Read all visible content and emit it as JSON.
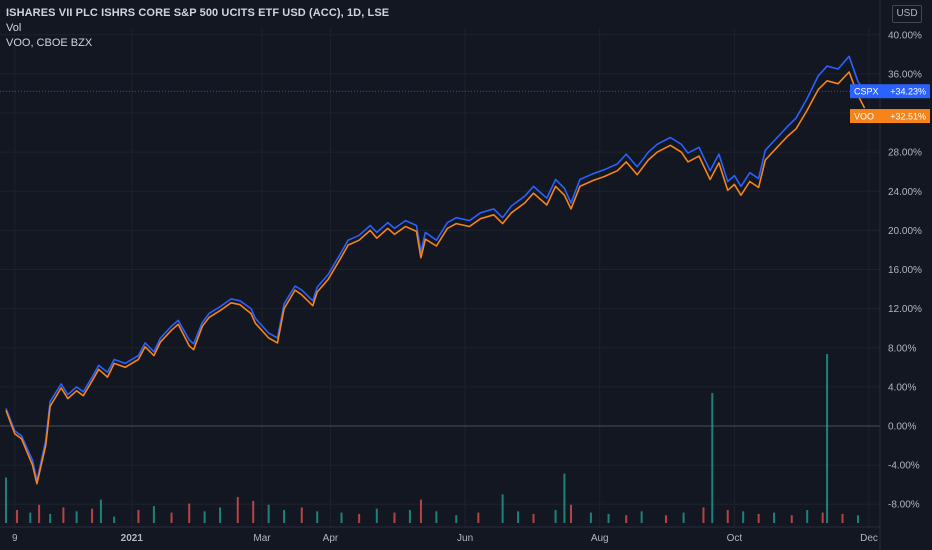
{
  "header": {
    "symbol_title": "ISHARES VII PLC ISHRS CORE S&P 500 UCITS ETF USD (ACC), 1D, LSE",
    "volume_label": "Vol",
    "compare_label": "VOO, CBOE BZX"
  },
  "currency": "USD",
  "colors": {
    "background": "#131722",
    "cspx": "#2962ff",
    "voo": "#f7841a",
    "vol_up": "#26a69a",
    "vol_down": "#ef5350",
    "grid": "#1e222d",
    "zero_line": "#787b86"
  },
  "chart_data": {
    "type": "line",
    "title": "ISHARES VII PLC ISHRS CORE S&P 500 UCITS ETF USD (ACC), 1D, LSE",
    "xlabel": "",
    "ylabel": "",
    "y_axis_unit": "%",
    "ylim": [
      -10,
      41
    ],
    "y_ticks": [
      "40.00%",
      "36.00%",
      "32.00%",
      "28.00%",
      "24.00%",
      "20.00%",
      "16.00%",
      "12.00%",
      "8.00%",
      "4.00%",
      "0.00%",
      "-4.00%",
      "-8.00%"
    ],
    "x_tick_labels": [
      "9",
      "2021",
      "Mar",
      "Apr",
      "Jun",
      "Aug",
      "Oct",
      "Dec"
    ],
    "grid": true,
    "series": [
      {
        "name": "CSPX",
        "last_label": "+34.23%",
        "last_value": 34.23,
        "points": [
          [
            "2020-11-05",
            1.8
          ],
          [
            "2020-11-09",
            -0.5
          ],
          [
            "2020-11-12",
            -1.0
          ],
          [
            "2020-11-17",
            -3.5
          ],
          [
            "2020-11-19",
            -5.6
          ],
          [
            "2020-11-23",
            -1.5
          ],
          [
            "2020-11-25",
            2.5
          ],
          [
            "2020-11-30",
            4.3
          ],
          [
            "2020-12-03",
            3.2
          ],
          [
            "2020-12-07",
            4.0
          ],
          [
            "2020-12-10",
            3.5
          ],
          [
            "2020-12-14",
            5.0
          ],
          [
            "2020-12-17",
            6.2
          ],
          [
            "2020-12-21",
            5.5
          ],
          [
            "2020-12-24",
            6.8
          ],
          [
            "2020-12-29",
            6.4
          ],
          [
            "2021-01-04",
            7.2
          ],
          [
            "2021-01-07",
            8.5
          ],
          [
            "2021-01-11",
            7.6
          ],
          [
            "2021-01-14",
            9.0
          ],
          [
            "2021-01-19",
            10.2
          ],
          [
            "2021-01-22",
            10.8
          ],
          [
            "2021-01-27",
            8.8
          ],
          [
            "2021-01-29",
            8.4
          ],
          [
            "2021-02-02",
            10.6
          ],
          [
            "2021-02-05",
            11.5
          ],
          [
            "2021-02-10",
            12.2
          ],
          [
            "2021-02-15",
            13.0
          ],
          [
            "2021-02-19",
            12.8
          ],
          [
            "2021-02-24",
            12.0
          ],
          [
            "2021-02-26",
            11.0
          ],
          [
            "2021-03-04",
            9.5
          ],
          [
            "2021-03-08",
            9.0
          ],
          [
            "2021-03-11",
            12.5
          ],
          [
            "2021-03-16",
            14.3
          ],
          [
            "2021-03-19",
            13.9
          ],
          [
            "2021-03-24",
            12.8
          ],
          [
            "2021-03-26",
            14.2
          ],
          [
            "2021-03-31",
            15.5
          ],
          [
            "2021-04-06",
            17.8
          ],
          [
            "2021-04-09",
            19.0
          ],
          [
            "2021-04-14",
            19.5
          ],
          [
            "2021-04-19",
            20.5
          ],
          [
            "2021-04-22",
            19.8
          ],
          [
            "2021-04-27",
            20.8
          ],
          [
            "2021-04-30",
            20.2
          ],
          [
            "2021-05-05",
            21.0
          ],
          [
            "2021-05-10",
            20.5
          ],
          [
            "2021-05-12",
            17.8
          ],
          [
            "2021-05-14",
            19.8
          ],
          [
            "2021-05-19",
            19.0
          ],
          [
            "2021-05-24",
            20.8
          ],
          [
            "2021-05-28",
            21.3
          ],
          [
            "2021-06-03",
            21.0
          ],
          [
            "2021-06-08",
            21.8
          ],
          [
            "2021-06-14",
            22.2
          ],
          [
            "2021-06-18",
            21.3
          ],
          [
            "2021-06-22",
            22.5
          ],
          [
            "2021-06-28",
            23.5
          ],
          [
            "2021-07-02",
            24.5
          ],
          [
            "2021-07-08",
            23.3
          ],
          [
            "2021-07-12",
            25.2
          ],
          [
            "2021-07-16",
            24.3
          ],
          [
            "2021-07-19",
            22.8
          ],
          [
            "2021-07-23",
            25.2
          ],
          [
            "2021-07-29",
            25.8
          ],
          [
            "2021-08-03",
            26.2
          ],
          [
            "2021-08-09",
            26.8
          ],
          [
            "2021-08-13",
            27.8
          ],
          [
            "2021-08-18",
            26.5
          ],
          [
            "2021-08-23",
            28.0
          ],
          [
            "2021-08-27",
            28.8
          ],
          [
            "2021-09-02",
            29.5
          ],
          [
            "2021-09-07",
            28.8
          ],
          [
            "2021-09-10",
            27.9
          ],
          [
            "2021-09-15",
            28.5
          ],
          [
            "2021-09-20",
            26.1
          ],
          [
            "2021-09-24",
            27.8
          ],
          [
            "2021-09-28",
            25.0
          ],
          [
            "2021-10-01",
            25.6
          ],
          [
            "2021-10-04",
            24.5
          ],
          [
            "2021-10-08",
            25.9
          ],
          [
            "2021-10-12",
            25.3
          ],
          [
            "2021-10-15",
            28.2
          ],
          [
            "2021-10-20",
            29.4
          ],
          [
            "2021-10-25",
            30.6
          ],
          [
            "2021-10-29",
            31.5
          ],
          [
            "2021-11-03",
            33.5
          ],
          [
            "2021-11-08",
            35.8
          ],
          [
            "2021-11-12",
            36.8
          ],
          [
            "2021-11-17",
            36.5
          ],
          [
            "2021-11-22",
            37.8
          ],
          [
            "2021-11-26",
            35.2
          ],
          [
            "2021-11-29",
            34.23
          ]
        ]
      },
      {
        "name": "VOO",
        "last_label": "+32.51%",
        "last_value": 32.51,
        "points": [
          [
            "2020-11-05",
            1.6
          ],
          [
            "2020-11-09",
            -0.8
          ],
          [
            "2020-11-12",
            -1.3
          ],
          [
            "2020-11-17",
            -4.0
          ],
          [
            "2020-11-19",
            -5.9
          ],
          [
            "2020-11-23",
            -2.0
          ],
          [
            "2020-11-25",
            2.0
          ],
          [
            "2020-11-30",
            3.9
          ],
          [
            "2020-12-03",
            2.8
          ],
          [
            "2020-12-07",
            3.6
          ],
          [
            "2020-12-10",
            3.1
          ],
          [
            "2020-12-14",
            4.6
          ],
          [
            "2020-12-17",
            5.8
          ],
          [
            "2020-12-21",
            5.0
          ],
          [
            "2020-12-24",
            6.4
          ],
          [
            "2020-12-29",
            6.0
          ],
          [
            "2021-01-04",
            6.8
          ],
          [
            "2021-01-07",
            8.1
          ],
          [
            "2021-01-11",
            7.2
          ],
          [
            "2021-01-14",
            8.6
          ],
          [
            "2021-01-19",
            9.8
          ],
          [
            "2021-01-22",
            10.4
          ],
          [
            "2021-01-27",
            8.2
          ],
          [
            "2021-01-29",
            7.8
          ],
          [
            "2021-02-02",
            10.2
          ],
          [
            "2021-02-05",
            11.1
          ],
          [
            "2021-02-10",
            11.8
          ],
          [
            "2021-02-15",
            12.6
          ],
          [
            "2021-02-19",
            12.4
          ],
          [
            "2021-02-24",
            11.5
          ],
          [
            "2021-02-26",
            10.5
          ],
          [
            "2021-03-04",
            9.0
          ],
          [
            "2021-03-08",
            8.5
          ],
          [
            "2021-03-11",
            12.0
          ],
          [
            "2021-03-16",
            13.9
          ],
          [
            "2021-03-19",
            13.4
          ],
          [
            "2021-03-24",
            12.3
          ],
          [
            "2021-03-26",
            13.7
          ],
          [
            "2021-03-31",
            15.0
          ],
          [
            "2021-04-06",
            17.3
          ],
          [
            "2021-04-09",
            18.5
          ],
          [
            "2021-04-14",
            19.0
          ],
          [
            "2021-04-19",
            20.0
          ],
          [
            "2021-04-22",
            19.2
          ],
          [
            "2021-04-27",
            20.2
          ],
          [
            "2021-04-30",
            19.6
          ],
          [
            "2021-05-05",
            20.4
          ],
          [
            "2021-05-10",
            19.9
          ],
          [
            "2021-05-12",
            17.2
          ],
          [
            "2021-05-14",
            19.1
          ],
          [
            "2021-05-19",
            18.4
          ],
          [
            "2021-05-24",
            20.2
          ],
          [
            "2021-05-28",
            20.7
          ],
          [
            "2021-06-03",
            20.4
          ],
          [
            "2021-06-08",
            21.2
          ],
          [
            "2021-06-14",
            21.6
          ],
          [
            "2021-06-18",
            20.7
          ],
          [
            "2021-06-22",
            21.8
          ],
          [
            "2021-06-28",
            22.8
          ],
          [
            "2021-07-02",
            23.8
          ],
          [
            "2021-07-08",
            22.6
          ],
          [
            "2021-07-12",
            24.5
          ],
          [
            "2021-07-16",
            23.6
          ],
          [
            "2021-07-19",
            22.2
          ],
          [
            "2021-07-23",
            24.5
          ],
          [
            "2021-07-29",
            25.1
          ],
          [
            "2021-08-03",
            25.5
          ],
          [
            "2021-08-09",
            26.1
          ],
          [
            "2021-08-13",
            27.0
          ],
          [
            "2021-08-18",
            25.7
          ],
          [
            "2021-08-23",
            27.2
          ],
          [
            "2021-08-27",
            28.0
          ],
          [
            "2021-09-02",
            28.7
          ],
          [
            "2021-09-07",
            28.0
          ],
          [
            "2021-09-10",
            27.0
          ],
          [
            "2021-09-15",
            27.6
          ],
          [
            "2021-09-20",
            25.2
          ],
          [
            "2021-09-24",
            26.9
          ],
          [
            "2021-09-28",
            24.1
          ],
          [
            "2021-10-01",
            24.7
          ],
          [
            "2021-10-04",
            23.6
          ],
          [
            "2021-10-08",
            25.0
          ],
          [
            "2021-10-12",
            24.4
          ],
          [
            "2021-10-15",
            27.2
          ],
          [
            "2021-10-20",
            28.4
          ],
          [
            "2021-10-25",
            29.6
          ],
          [
            "2021-10-29",
            30.4
          ],
          [
            "2021-11-03",
            32.3
          ],
          [
            "2021-11-08",
            34.4
          ],
          [
            "2021-11-12",
            35.3
          ],
          [
            "2021-11-17",
            35.0
          ],
          [
            "2021-11-22",
            36.2
          ],
          [
            "2021-11-26",
            33.8
          ],
          [
            "2021-11-29",
            32.51
          ]
        ]
      }
    ],
    "volume": {
      "name": "Vol",
      "bars": [
        [
          "2020-11-05",
          0.35,
          "up"
        ],
        [
          "2020-11-10",
          0.1,
          "down"
        ],
        [
          "2020-11-16",
          0.08,
          "up"
        ],
        [
          "2020-11-20",
          0.14,
          "down"
        ],
        [
          "2020-11-25",
          0.07,
          "up"
        ],
        [
          "2020-12-01",
          0.12,
          "down"
        ],
        [
          "2020-12-07",
          0.09,
          "up"
        ],
        [
          "2020-12-14",
          0.11,
          "down"
        ],
        [
          "2020-12-18",
          0.18,
          "up"
        ],
        [
          "2020-12-24",
          0.05,
          "up"
        ],
        [
          "2021-01-04",
          0.1,
          "down"
        ],
        [
          "2021-01-11",
          0.13,
          "up"
        ],
        [
          "2021-01-19",
          0.08,
          "down"
        ],
        [
          "2021-01-27",
          0.15,
          "down"
        ],
        [
          "2021-02-03",
          0.09,
          "up"
        ],
        [
          "2021-02-10",
          0.12,
          "up"
        ],
        [
          "2021-02-18",
          0.2,
          "down"
        ],
        [
          "2021-02-25",
          0.17,
          "down"
        ],
        [
          "2021-03-04",
          0.14,
          "up"
        ],
        [
          "2021-03-11",
          0.1,
          "up"
        ],
        [
          "2021-03-19",
          0.12,
          "down"
        ],
        [
          "2021-03-26",
          0.09,
          "up"
        ],
        [
          "2021-04-06",
          0.08,
          "up"
        ],
        [
          "2021-04-14",
          0.07,
          "down"
        ],
        [
          "2021-04-22",
          0.11,
          "up"
        ],
        [
          "2021-04-30",
          0.08,
          "down"
        ],
        [
          "2021-05-07",
          0.1,
          "up"
        ],
        [
          "2021-05-12",
          0.18,
          "down"
        ],
        [
          "2021-05-19",
          0.09,
          "up"
        ],
        [
          "2021-05-28",
          0.06,
          "up"
        ],
        [
          "2021-06-07",
          0.08,
          "down"
        ],
        [
          "2021-06-18",
          0.22,
          "up"
        ],
        [
          "2021-06-25",
          0.09,
          "up"
        ],
        [
          "2021-07-02",
          0.07,
          "down"
        ],
        [
          "2021-07-12",
          0.1,
          "up"
        ],
        [
          "2021-07-16",
          0.38,
          "up"
        ],
        [
          "2021-07-19",
          0.14,
          "down"
        ],
        [
          "2021-07-28",
          0.08,
          "up"
        ],
        [
          "2021-08-05",
          0.07,
          "up"
        ],
        [
          "2021-08-13",
          0.06,
          "down"
        ],
        [
          "2021-08-20",
          0.09,
          "up"
        ],
        [
          "2021-08-31",
          0.06,
          "down"
        ],
        [
          "2021-09-08",
          0.08,
          "up"
        ],
        [
          "2021-09-17",
          0.12,
          "down"
        ],
        [
          "2021-09-21",
          1.0,
          "up"
        ],
        [
          "2021-09-28",
          0.1,
          "down"
        ],
        [
          "2021-10-05",
          0.09,
          "up"
        ],
        [
          "2021-10-12",
          0.07,
          "down"
        ],
        [
          "2021-10-19",
          0.08,
          "up"
        ],
        [
          "2021-10-27",
          0.06,
          "down"
        ],
        [
          "2021-11-03",
          0.1,
          "up"
        ],
        [
          "2021-11-10",
          0.08,
          "down"
        ],
        [
          "2021-11-12",
          1.3,
          "up"
        ],
        [
          "2021-11-19",
          0.07,
          "down"
        ],
        [
          "2021-11-26",
          0.06,
          "up"
        ]
      ]
    }
  }
}
